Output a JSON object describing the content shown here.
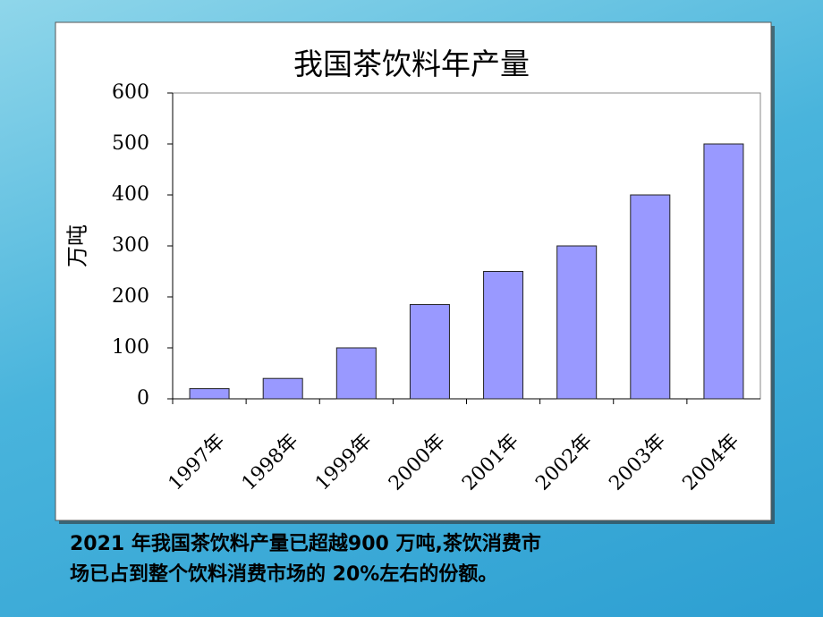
{
  "chart_data": {
    "type": "bar",
    "title": "我国茶饮料年产量",
    "y_label": "万吨",
    "categories": [
      "1997年",
      "1998年",
      "1999年",
      "2000年",
      "2001年",
      "2002年",
      "2003年",
      "2004年"
    ],
    "values": [
      20,
      40,
      100,
      185,
      250,
      300,
      400,
      500
    ],
    "color": "#9999ff",
    "ylim": [
      0,
      600
    ],
    "yticks": [
      0,
      100,
      200,
      300,
      400,
      500,
      600
    ],
    "grid": false
  },
  "caption": [
    "2021 年我国茶饮料产量已超越900 万吨,茶饮消费市",
    "场已占到整个饮料消费市场的 20%左右的份额。"
  ]
}
